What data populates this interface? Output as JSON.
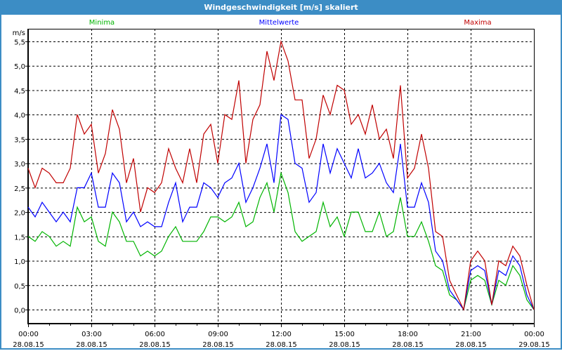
{
  "window": {
    "title": "Windgeschwindigkeit [m/s] skaliert"
  },
  "chart_data": {
    "type": "line",
    "title": "Windgeschwindigkeit [m/s] skaliert",
    "ylabel": "m/s",
    "xlabel": "",
    "ylim": [
      0,
      5.5
    ],
    "y_ticks": [
      "0,0",
      "0,5",
      "1,0",
      "1,5",
      "2,0",
      "2,5",
      "3,0",
      "3,5",
      "4,0",
      "4,5",
      "5,0",
      "5,5"
    ],
    "x_range_hours": [
      0,
      24
    ],
    "interval_minutes": 20,
    "x_ticks": [
      {
        "time": "00:00",
        "date": "28.08.15"
      },
      {
        "time": "03:00",
        "date": "28.08.15"
      },
      {
        "time": "06:00",
        "date": "28.08.15"
      },
      {
        "time": "09:00",
        "date": "28.08.15"
      },
      {
        "time": "12:00",
        "date": "28.08.15"
      },
      {
        "time": "15:00",
        "date": "28.08.15"
      },
      {
        "time": "18:00",
        "date": "28.08.15"
      },
      {
        "time": "21:00",
        "date": "28.08.15"
      },
      {
        "time": "00:00",
        "date": "29.08.15"
      }
    ],
    "grid": true,
    "legend_placement": "top",
    "series": [
      {
        "name": "Minima",
        "color": "#00b400",
        "values": [
          1.5,
          1.4,
          1.6,
          1.5,
          1.3,
          1.4,
          1.3,
          2.1,
          1.8,
          1.9,
          1.4,
          1.3,
          2.0,
          1.8,
          1.4,
          1.4,
          1.1,
          1.2,
          1.1,
          1.2,
          1.5,
          1.7,
          1.4,
          1.4,
          1.4,
          1.6,
          1.9,
          1.9,
          1.8,
          1.9,
          2.2,
          1.7,
          1.8,
          2.3,
          2.6,
          2.0,
          2.8,
          2.4,
          1.6,
          1.4,
          1.5,
          1.6,
          2.2,
          1.7,
          1.9,
          1.5,
          2.0,
          2.0,
          1.6,
          1.6,
          2.0,
          1.5,
          1.6,
          2.3,
          1.5,
          1.5,
          1.8,
          1.4,
          0.9,
          0.8,
          0.3,
          0.2,
          0.0,
          0.6,
          0.7,
          0.6,
          0.1,
          0.6,
          0.5,
          0.9,
          0.7,
          0.2,
          0.0
        ]
      },
      {
        "name": "Mittelwerte",
        "color": "#0000ff",
        "values": [
          2.1,
          1.9,
          2.2,
          2.0,
          1.8,
          2.0,
          1.8,
          2.5,
          2.5,
          2.8,
          2.1,
          2.1,
          2.8,
          2.6,
          1.8,
          2.0,
          1.7,
          1.8,
          1.7,
          1.7,
          2.2,
          2.6,
          1.8,
          2.1,
          2.1,
          2.6,
          2.5,
          2.3,
          2.6,
          2.7,
          3.0,
          2.2,
          2.5,
          2.9,
          3.4,
          2.6,
          4.0,
          3.9,
          3.0,
          2.9,
          2.2,
          2.4,
          3.4,
          2.8,
          3.3,
          3.0,
          2.7,
          3.3,
          2.7,
          2.8,
          3.0,
          2.6,
          2.4,
          3.4,
          2.1,
          2.1,
          2.6,
          2.2,
          1.2,
          1.0,
          0.4,
          0.2,
          0.0,
          0.8,
          0.9,
          0.8,
          0.1,
          0.8,
          0.7,
          1.1,
          0.9,
          0.3,
          0.0
        ]
      },
      {
        "name": "Maxima",
        "color": "#c00000",
        "values": [
          2.9,
          2.5,
          2.9,
          2.8,
          2.6,
          2.6,
          2.9,
          4.0,
          3.6,
          3.8,
          2.8,
          3.2,
          4.1,
          3.7,
          2.6,
          3.1,
          2.0,
          2.5,
          2.4,
          2.6,
          3.3,
          2.9,
          2.6,
          3.3,
          2.6,
          3.6,
          3.8,
          3.0,
          4.0,
          3.9,
          4.7,
          3.0,
          3.9,
          4.2,
          5.3,
          4.7,
          5.5,
          5.1,
          4.3,
          4.3,
          3.1,
          3.5,
          4.4,
          4.0,
          4.6,
          4.5,
          3.8,
          4.0,
          3.6,
          4.2,
          3.5,
          3.7,
          3.1,
          4.6,
          2.7,
          2.9,
          3.6,
          2.9,
          1.6,
          1.5,
          0.6,
          0.3,
          0.0,
          1.0,
          1.2,
          1.0,
          0.1,
          1.0,
          0.9,
          1.3,
          1.1,
          0.5,
          0.0
        ]
      }
    ]
  }
}
